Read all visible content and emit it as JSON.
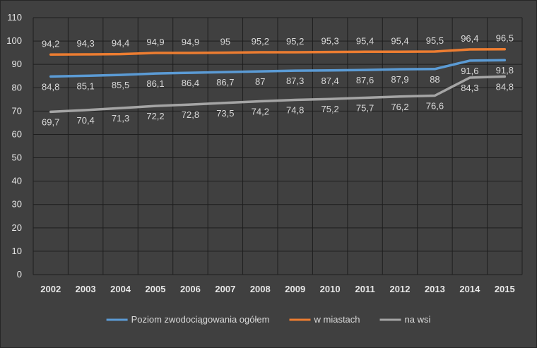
{
  "chart_data": {
    "type": "line",
    "title": "",
    "xlabel": "",
    "ylabel": "",
    "categories": [
      "2002",
      "2003",
      "2004",
      "2005",
      "2006",
      "2007",
      "2008",
      "2009",
      "2010",
      "2011",
      "2012",
      "2013",
      "2014",
      "2015"
    ],
    "ylim": [
      0,
      110
    ],
    "yticks": [
      0,
      10,
      20,
      30,
      40,
      50,
      60,
      70,
      80,
      90,
      100,
      110
    ],
    "grid": true,
    "legend_position": "bottom",
    "decimal_separator": ",",
    "series": [
      {
        "name": "Poziom zwodociągowania ogółem",
        "color": "#5b9bd5",
        "values": [
          84.8,
          85.1,
          85.5,
          86.1,
          86.4,
          86.7,
          87,
          87.3,
          87.4,
          87.6,
          87.9,
          88,
          91.6,
          91.8
        ],
        "label_position": "below"
      },
      {
        "name": "w miastach",
        "color": "#ed7d31",
        "values": [
          94.2,
          94.3,
          94.4,
          94.9,
          94.9,
          95,
          95.2,
          95.2,
          95.3,
          95.4,
          95.4,
          95.5,
          96.4,
          96.5
        ],
        "label_position": "above"
      },
      {
        "name": "na wsi",
        "color": "#a5a5a5",
        "values": [
          69.7,
          70.4,
          71.3,
          72.2,
          72.8,
          73.5,
          74.2,
          74.8,
          75.2,
          75.7,
          76.2,
          76.6,
          84.3,
          84.8
        ],
        "label_position": "below"
      }
    ]
  }
}
